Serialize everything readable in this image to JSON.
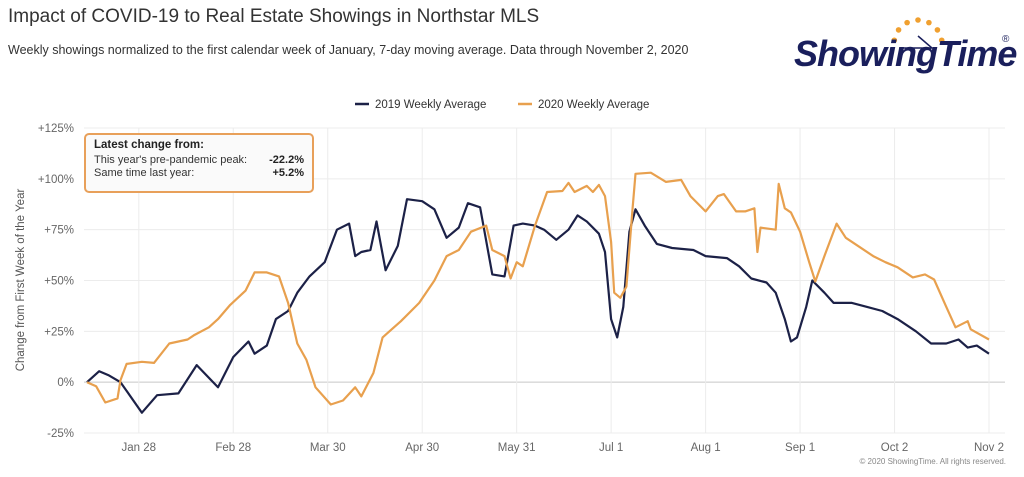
{
  "header": {
    "title": "Impact of COVID-19 to Real Estate Showings in Northstar MLS",
    "subtitle": "Weekly showings normalized to the first calendar week of January, 7-day moving average. Data through November 2, 2020",
    "logo_text": "ShowingTime",
    "logo_mark": "®"
  },
  "callout": {
    "heading": "Latest change from:",
    "rows": [
      {
        "label": "This year's pre-pandemic peak:",
        "value": "-22.2%"
      },
      {
        "label": "Same time last year:",
        "value": "+5.2%"
      }
    ]
  },
  "copyright": "© 2020 ShowingTime. All rights reserved.",
  "colors": {
    "series_2019": "#1c2147",
    "series_2020": "#e8a04e",
    "grid": "#e6e6e6",
    "logo_navy": "#1a1f5c",
    "logo_orange": "#f0a030"
  },
  "chart_data": {
    "type": "line",
    "title": "Impact of COVID-19 to Real Estate Showings in Northstar MLS",
    "ylabel": "Change from First Week of the Year",
    "xlabel": "",
    "ylim": [
      -25,
      125
    ],
    "yticks": [
      "-25%",
      "0%",
      "+25%",
      "+50%",
      "+75%",
      "+100%",
      "+125%"
    ],
    "ytick_values": [
      -25,
      0,
      25,
      50,
      75,
      100,
      125
    ],
    "xticks": [
      "Jan 28",
      "Feb 28",
      "Mar 30",
      "Apr 30",
      "May 31",
      "Jul 1",
      "Aug 1",
      "Sep 1",
      "Oct 2",
      "Nov 2"
    ],
    "xtick_dates": [
      "2020-01-28",
      "2020-02-28",
      "2020-03-30",
      "2020-04-30",
      "2020-05-31",
      "2020-07-01",
      "2020-08-01",
      "2020-09-01",
      "2020-10-02",
      "2020-11-02"
    ],
    "xlim": [
      "2020-01-11",
      "2020-11-02"
    ],
    "grid": true,
    "legend": "top-center",
    "series": [
      {
        "name": "2019 Weekly Average",
        "color": "#1c2147",
        "points": [
          [
            "2020-01-11",
            0
          ],
          [
            "2020-01-15",
            5.4
          ],
          [
            "2020-01-18",
            3.5
          ],
          [
            "2020-01-22",
            0
          ],
          [
            "2020-01-29",
            -15
          ],
          [
            "2020-02-03",
            -6.4
          ],
          [
            "2020-02-10",
            -5.5
          ],
          [
            "2020-02-16",
            8.4
          ],
          [
            "2020-02-23",
            -2.5
          ],
          [
            "2020-02-28",
            12.4
          ],
          [
            "2020-03-04",
            20
          ],
          [
            "2020-03-06",
            14
          ],
          [
            "2020-03-10",
            18
          ],
          [
            "2020-03-13",
            31
          ],
          [
            "2020-03-17",
            35
          ],
          [
            "2020-03-20",
            44
          ],
          [
            "2020-03-24",
            52
          ],
          [
            "2020-03-29",
            59
          ],
          [
            "2020-04-02",
            75
          ],
          [
            "2020-04-06",
            78
          ],
          [
            "2020-04-08",
            62
          ],
          [
            "2020-04-10",
            64
          ],
          [
            "2020-04-13",
            65
          ],
          [
            "2020-04-15",
            79
          ],
          [
            "2020-04-18",
            55
          ],
          [
            "2020-04-22",
            67
          ],
          [
            "2020-04-25",
            90
          ],
          [
            "2020-04-30",
            89
          ],
          [
            "2020-05-04",
            85
          ],
          [
            "2020-05-08",
            71
          ],
          [
            "2020-05-12",
            76
          ],
          [
            "2020-05-15",
            88
          ],
          [
            "2020-05-19",
            86
          ],
          [
            "2020-05-23",
            53
          ],
          [
            "2020-05-27",
            52
          ],
          [
            "2020-05-30",
            77
          ],
          [
            "2020-06-02",
            78
          ],
          [
            "2020-06-06",
            77
          ],
          [
            "2020-06-09",
            75
          ],
          [
            "2020-06-13",
            70
          ],
          [
            "2020-06-17",
            75
          ],
          [
            "2020-06-20",
            82
          ],
          [
            "2020-06-23",
            79
          ],
          [
            "2020-06-27",
            73
          ],
          [
            "2020-06-29",
            64
          ],
          [
            "2020-07-01",
            31
          ],
          [
            "2020-07-03",
            22
          ],
          [
            "2020-07-05",
            37
          ],
          [
            "2020-07-07",
            74
          ],
          [
            "2020-07-09",
            85
          ],
          [
            "2020-07-12",
            77
          ],
          [
            "2020-07-16",
            68
          ],
          [
            "2020-07-21",
            66
          ],
          [
            "2020-07-28",
            65
          ],
          [
            "2020-08-01",
            62
          ],
          [
            "2020-08-08",
            61
          ],
          [
            "2020-08-12",
            57
          ],
          [
            "2020-08-16",
            51
          ],
          [
            "2020-08-21",
            49
          ],
          [
            "2020-08-24",
            44
          ],
          [
            "2020-08-27",
            31
          ],
          [
            "2020-08-29",
            20
          ],
          [
            "2020-08-31",
            22
          ],
          [
            "2020-09-03",
            37
          ],
          [
            "2020-09-05",
            50
          ],
          [
            "2020-09-09",
            44
          ],
          [
            "2020-09-12",
            39
          ],
          [
            "2020-09-18",
            39
          ],
          [
            "2020-09-23",
            37
          ],
          [
            "2020-09-28",
            35
          ],
          [
            "2020-10-03",
            31
          ],
          [
            "2020-10-09",
            25
          ],
          [
            "2020-10-14",
            19
          ],
          [
            "2020-10-19",
            19
          ],
          [
            "2020-10-23",
            21
          ],
          [
            "2020-10-26",
            17
          ],
          [
            "2020-10-29",
            18
          ],
          [
            "2020-11-02",
            14
          ]
        ]
      },
      {
        "name": "2020 Weekly Average",
        "color": "#e8a04e",
        "points": [
          [
            "2020-01-11",
            0
          ],
          [
            "2020-01-14",
            -2
          ],
          [
            "2020-01-17",
            -10
          ],
          [
            "2020-01-21",
            -8
          ],
          [
            "2020-01-22",
            1
          ],
          [
            "2020-01-24",
            9
          ],
          [
            "2020-01-29",
            10
          ],
          [
            "2020-02-02",
            9.5
          ],
          [
            "2020-02-07",
            19
          ],
          [
            "2020-02-13",
            21
          ],
          [
            "2020-02-15",
            23
          ],
          [
            "2020-02-20",
            27
          ],
          [
            "2020-02-23",
            31
          ],
          [
            "2020-02-27",
            38
          ],
          [
            "2020-03-03",
            45
          ],
          [
            "2020-03-06",
            54
          ],
          [
            "2020-03-10",
            54
          ],
          [
            "2020-03-14",
            52
          ],
          [
            "2020-03-17",
            39
          ],
          [
            "2020-03-20",
            19
          ],
          [
            "2020-03-23",
            11
          ],
          [
            "2020-03-26",
            -2.5
          ],
          [
            "2020-03-31",
            -11
          ],
          [
            "2020-04-04",
            -9
          ],
          [
            "2020-04-08",
            -2.5
          ],
          [
            "2020-04-10",
            -7
          ],
          [
            "2020-04-14",
            4.5
          ],
          [
            "2020-04-17",
            22
          ],
          [
            "2020-04-20",
            26
          ],
          [
            "2020-04-23",
            30
          ],
          [
            "2020-04-29",
            39
          ],
          [
            "2020-05-04",
            50
          ],
          [
            "2020-05-08",
            62
          ],
          [
            "2020-05-12",
            65
          ],
          [
            "2020-05-16",
            74
          ],
          [
            "2020-05-21",
            77
          ],
          [
            "2020-05-23",
            65
          ],
          [
            "2020-05-27",
            62
          ],
          [
            "2020-05-29",
            51
          ],
          [
            "2020-05-31",
            59
          ],
          [
            "2020-06-02",
            57
          ],
          [
            "2020-06-06",
            77
          ],
          [
            "2020-06-10",
            93.5
          ],
          [
            "2020-06-15",
            94
          ],
          [
            "2020-06-17",
            98
          ],
          [
            "2020-06-19",
            93.5
          ],
          [
            "2020-06-23",
            96.5
          ],
          [
            "2020-06-25",
            93.5
          ],
          [
            "2020-06-27",
            97
          ],
          [
            "2020-06-29",
            91.5
          ],
          [
            "2020-07-01",
            69
          ],
          [
            "2020-07-02",
            44
          ],
          [
            "2020-07-04",
            41.5
          ],
          [
            "2020-07-06",
            47
          ],
          [
            "2020-07-08",
            85
          ],
          [
            "2020-07-09",
            102.5
          ],
          [
            "2020-07-14",
            103
          ],
          [
            "2020-07-19",
            98.5
          ],
          [
            "2020-07-24",
            99.5
          ],
          [
            "2020-07-27",
            91.5
          ],
          [
            "2020-08-01",
            84
          ],
          [
            "2020-08-05",
            91.5
          ],
          [
            "2020-08-07",
            92.5
          ],
          [
            "2020-08-11",
            84
          ],
          [
            "2020-08-14",
            84
          ],
          [
            "2020-08-17",
            85.5
          ],
          [
            "2020-08-18",
            64
          ],
          [
            "2020-08-19",
            76
          ],
          [
            "2020-08-24",
            75
          ],
          [
            "2020-08-25",
            97.5
          ],
          [
            "2020-08-27",
            85.5
          ],
          [
            "2020-08-29",
            83.5
          ],
          [
            "2020-09-01",
            74
          ],
          [
            "2020-09-04",
            59
          ],
          [
            "2020-09-06",
            49.5
          ],
          [
            "2020-09-09",
            62
          ],
          [
            "2020-09-13",
            78
          ],
          [
            "2020-09-16",
            71
          ],
          [
            "2020-09-20",
            67
          ],
          [
            "2020-09-25",
            62
          ],
          [
            "2020-09-29",
            59
          ],
          [
            "2020-10-03",
            56.5
          ],
          [
            "2020-10-08",
            51.5
          ],
          [
            "2020-10-12",
            53
          ],
          [
            "2020-10-15",
            50.5
          ],
          [
            "2020-10-19",
            37
          ],
          [
            "2020-10-22",
            27
          ],
          [
            "2020-10-26",
            30
          ],
          [
            "2020-10-27",
            26
          ],
          [
            "2020-11-02",
            21
          ]
        ]
      }
    ]
  }
}
